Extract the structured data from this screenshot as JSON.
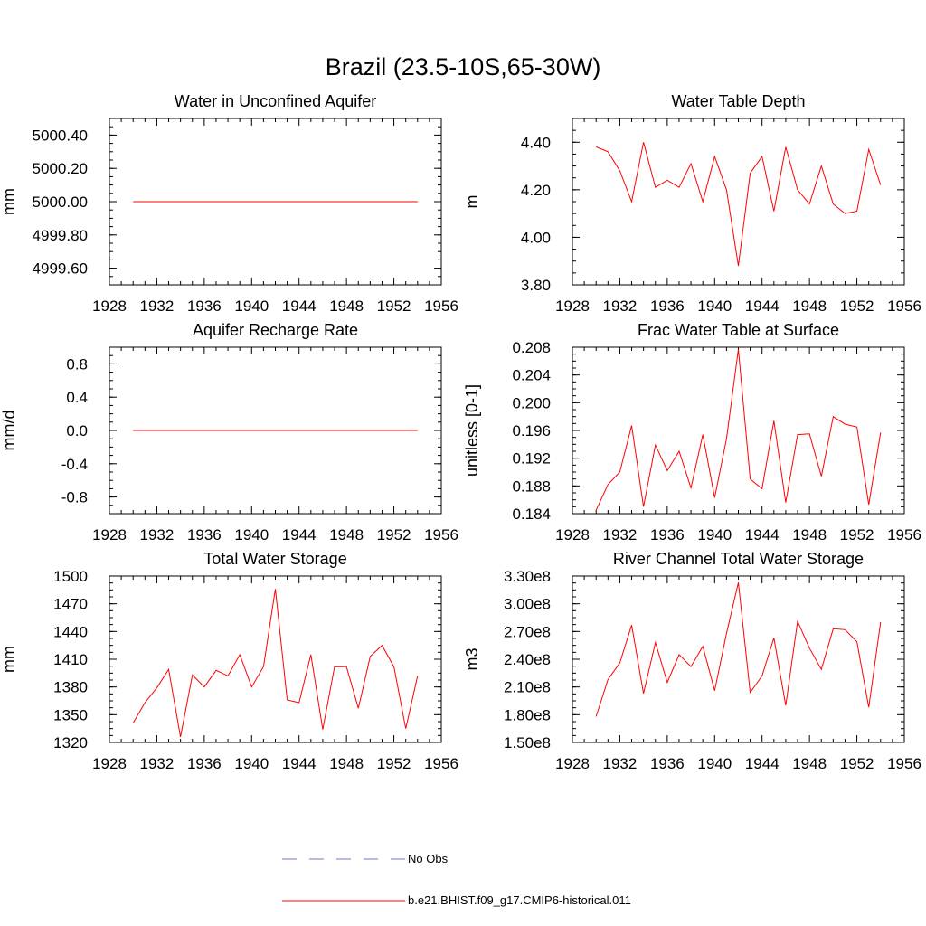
{
  "title": "Brazil (23.5-10S,65-30W)",
  "colors": {
    "model": "#ff0000",
    "obs": "#6b7cc4"
  },
  "chart_data": [
    {
      "type": "line",
      "title": "Water in Unconfined Aquifer",
      "ylabel": "mm",
      "xlim": [
        1928,
        1956
      ],
      "ylim": [
        4999.5,
        5000.5
      ],
      "xticks": [
        1928,
        1932,
        1936,
        1940,
        1944,
        1948,
        1952,
        1956
      ],
      "yticks": [
        4999.6,
        4999.8,
        5000.0,
        5000.2,
        5000.4
      ],
      "ytick_labels": [
        "4999.60",
        "4999.80",
        "5000.00",
        "5000.20",
        "5000.40"
      ],
      "x": [
        1930,
        1931,
        1932,
        1933,
        1934,
        1935,
        1936,
        1937,
        1938,
        1939,
        1940,
        1941,
        1942,
        1943,
        1944,
        1945,
        1946,
        1947,
        1948,
        1949,
        1950,
        1951,
        1952,
        1953,
        1954
      ],
      "values": [
        5000,
        5000,
        5000,
        5000,
        5000,
        5000,
        5000,
        5000,
        5000,
        5000,
        5000,
        5000,
        5000,
        5000,
        5000,
        5000,
        5000,
        5000,
        5000,
        5000,
        5000,
        5000,
        5000,
        5000,
        5000
      ]
    },
    {
      "type": "line",
      "title": "Water Table Depth",
      "ylabel": "m",
      "xlim": [
        1928,
        1956
      ],
      "ylim": [
        3.8,
        4.5
      ],
      "xticks": [
        1928,
        1932,
        1936,
        1940,
        1944,
        1948,
        1952,
        1956
      ],
      "yticks": [
        3.8,
        4.0,
        4.2,
        4.4
      ],
      "ytick_labels": [
        "3.80",
        "4.00",
        "4.20",
        "4.40"
      ],
      "x": [
        1930,
        1931,
        1932,
        1933,
        1934,
        1935,
        1936,
        1937,
        1938,
        1939,
        1940,
        1941,
        1942,
        1943,
        1944,
        1945,
        1946,
        1947,
        1948,
        1949,
        1950,
        1951,
        1952,
        1953,
        1954
      ],
      "values": [
        4.38,
        4.36,
        4.28,
        4.15,
        4.4,
        4.21,
        4.24,
        4.21,
        4.31,
        4.15,
        4.34,
        4.2,
        3.88,
        4.27,
        4.34,
        4.11,
        4.38,
        4.2,
        4.14,
        4.3,
        4.14,
        4.1,
        4.11,
        4.37,
        4.22
      ]
    },
    {
      "type": "line",
      "title": "Aquifer Recharge Rate",
      "ylabel": "mm/d",
      "xlim": [
        1928,
        1956
      ],
      "ylim": [
        -1.0,
        1.0
      ],
      "xticks": [
        1928,
        1932,
        1936,
        1940,
        1944,
        1948,
        1952,
        1956
      ],
      "yticks": [
        -0.8,
        -0.4,
        0.0,
        0.4,
        0.8
      ],
      "ytick_labels": [
        "-0.8",
        "-0.4",
        "0.0",
        "0.4",
        "0.8"
      ],
      "x": [
        1930,
        1931,
        1932,
        1933,
        1934,
        1935,
        1936,
        1937,
        1938,
        1939,
        1940,
        1941,
        1942,
        1943,
        1944,
        1945,
        1946,
        1947,
        1948,
        1949,
        1950,
        1951,
        1952,
        1953,
        1954
      ],
      "values": [
        0,
        0,
        0,
        0,
        0,
        0,
        0,
        0,
        0,
        0,
        0,
        0,
        0,
        0,
        0,
        0,
        0,
        0,
        0,
        0,
        0,
        0,
        0,
        0,
        0
      ]
    },
    {
      "type": "line",
      "title": "Frac Water Table at Surface",
      "ylabel": "unitless [0-1]",
      "xlim": [
        1928,
        1956
      ],
      "ylim": [
        0.184,
        0.208
      ],
      "xticks": [
        1928,
        1932,
        1936,
        1940,
        1944,
        1948,
        1952,
        1956
      ],
      "yticks": [
        0.184,
        0.188,
        0.192,
        0.196,
        0.2,
        0.204,
        0.208
      ],
      "ytick_labels": [
        "0.184",
        "0.188",
        "0.192",
        "0.196",
        "0.200",
        "0.204",
        "0.208"
      ],
      "x": [
        1930,
        1931,
        1932,
        1933,
        1934,
        1935,
        1936,
        1937,
        1938,
        1939,
        1940,
        1941,
        1942,
        1943,
        1944,
        1945,
        1946,
        1947,
        1948,
        1949,
        1950,
        1951,
        1952,
        1953,
        1954
      ],
      "values": [
        0.1845,
        0.1882,
        0.19,
        0.1967,
        0.185,
        0.1939,
        0.1902,
        0.193,
        0.1877,
        0.1954,
        0.1863,
        0.1948,
        0.2077,
        0.189,
        0.1876,
        0.1974,
        0.1856,
        0.1954,
        0.1955,
        0.1894,
        0.198,
        0.1969,
        0.1965,
        0.1853,
        0.1957
      ]
    },
    {
      "type": "line",
      "title": "Total Water Storage",
      "ylabel": "mm",
      "xlim": [
        1928,
        1956
      ],
      "ylim": [
        1320,
        1500
      ],
      "xticks": [
        1928,
        1932,
        1936,
        1940,
        1944,
        1948,
        1952,
        1956
      ],
      "yticks": [
        1320,
        1350,
        1380,
        1410,
        1440,
        1470,
        1500
      ],
      "ytick_labels": [
        "1320",
        "1350",
        "1380",
        "1410",
        "1440",
        "1470",
        "1500"
      ],
      "x": [
        1930,
        1931,
        1932,
        1933,
        1934,
        1935,
        1936,
        1937,
        1938,
        1939,
        1940,
        1941,
        1942,
        1943,
        1944,
        1945,
        1946,
        1947,
        1948,
        1949,
        1950,
        1951,
        1952,
        1953,
        1954
      ],
      "values": [
        1341,
        1363,
        1379,
        1399,
        1326,
        1393,
        1380,
        1398,
        1392,
        1415,
        1380,
        1402,
        1486,
        1366,
        1363,
        1415,
        1334,
        1402,
        1402,
        1357,
        1413,
        1425,
        1402,
        1335,
        1392
      ]
    },
    {
      "type": "line",
      "title": "River Channel Total Water Storage",
      "ylabel": "m3",
      "xlim": [
        1928,
        1956
      ],
      "ylim": [
        150000000,
        330000000
      ],
      "xticks": [
        1928,
        1932,
        1936,
        1940,
        1944,
        1948,
        1952,
        1956
      ],
      "yticks": [
        150000000,
        180000000,
        210000000,
        240000000,
        270000000,
        300000000,
        330000000
      ],
      "ytick_labels": [
        "1.50e8",
        "1.80e8",
        "2.10e8",
        "2.40e8",
        "2.70e8",
        "3.00e8",
        "3.30e8"
      ],
      "x": [
        1930,
        1931,
        1932,
        1933,
        1934,
        1935,
        1936,
        1937,
        1938,
        1939,
        1940,
        1941,
        1942,
        1943,
        1944,
        1945,
        1946,
        1947,
        1948,
        1949,
        1950,
        1951,
        1952,
        1953,
        1954
      ],
      "values": [
        178000000,
        218000000,
        236000000,
        277000000,
        203000000,
        258000000,
        215000000,
        245000000,
        232000000,
        254000000,
        206000000,
        268000000,
        323000000,
        204000000,
        222000000,
        263000000,
        190000000,
        281000000,
        252000000,
        229000000,
        273000000,
        272000000,
        259000000,
        188000000,
        280000000
      ]
    }
  ],
  "legend": {
    "placement": "bottom-center",
    "entries": [
      {
        "label": "No Obs",
        "style": "dashed"
      },
      {
        "label": "b.e21.BHIST.f09_g17.CMIP6-historical.011",
        "style": "solid"
      }
    ]
  }
}
